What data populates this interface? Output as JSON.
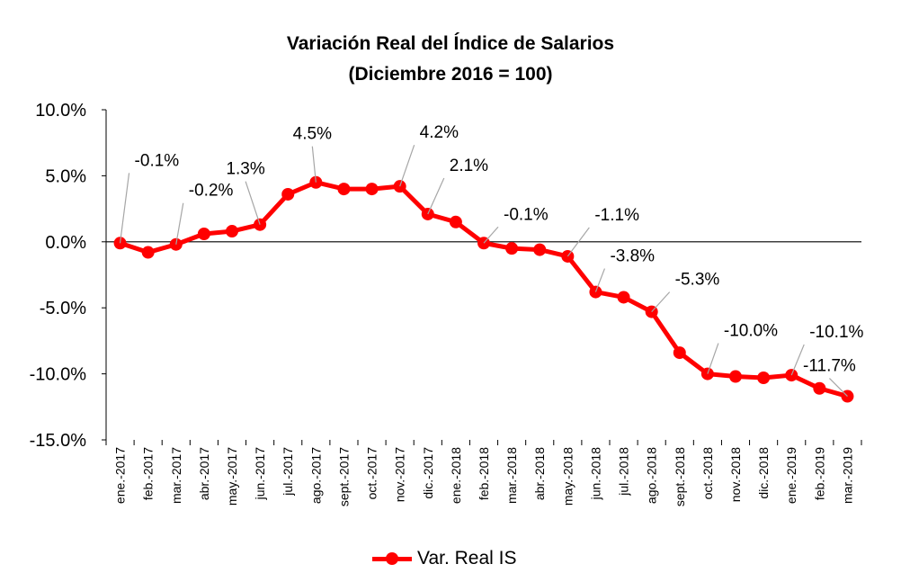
{
  "chart_data": {
    "type": "line",
    "title": "Variación Real del Índice de Salarios",
    "subtitle": "(Diciembre 2016 = 100)",
    "categories": [
      "ene.-2017",
      "feb.-2017",
      "mar.-2017",
      "abr.-2017",
      "may.-2017",
      "jun.-2017",
      "jul.-2017",
      "ago.-2017",
      "sept.-2017",
      "oct.-2017",
      "nov.-2017",
      "dic.-2017",
      "ene.-2018",
      "feb.-2018",
      "mar.-2018",
      "abr.-2018",
      "may.-2018",
      "jun.-2018",
      "jul.-2018",
      "ago.-2018",
      "sept.-2018",
      "oct.-2018",
      "nov.-2018",
      "dic.-2018",
      "ene.-2019",
      "feb.-2019",
      "mar.-2019"
    ],
    "series": [
      {
        "name": "Var. Real IS",
        "color": "#ff0000",
        "values": [
          -0.1,
          -0.8,
          -0.2,
          0.6,
          0.8,
          1.3,
          3.6,
          4.5,
          4.0,
          4.0,
          4.2,
          2.1,
          1.5,
          -0.1,
          -0.5,
          -0.6,
          -1.1,
          -3.8,
          -4.2,
          -5.3,
          -8.4,
          -10.0,
          -10.2,
          -10.3,
          -10.1,
          -11.1,
          -11.7
        ]
      }
    ],
    "data_labels": [
      {
        "category": "ene.-2017",
        "text": "-0.1%"
      },
      {
        "category": "mar.-2017",
        "text": "-0.2%"
      },
      {
        "category": "jun.-2017",
        "text": "1.3%"
      },
      {
        "category": "ago.-2017",
        "text": "4.5%"
      },
      {
        "category": "nov.-2017",
        "text": "4.2%"
      },
      {
        "category": "dic.-2017",
        "text": "2.1%"
      },
      {
        "category": "feb.-2018",
        "text": "-0.1%"
      },
      {
        "category": "may.-2018",
        "text": "-1.1%"
      },
      {
        "category": "jun.-2018",
        "text": "-3.8%"
      },
      {
        "category": "ago.-2018",
        "text": "-5.3%"
      },
      {
        "category": "oct.-2018",
        "text": "-10.0%"
      },
      {
        "category": "ene.-2019",
        "text": "-10.1%"
      },
      {
        "category": "mar.-2019",
        "text": "-11.7%"
      }
    ],
    "y_ticks": [
      {
        "value": 10,
        "label": "10.0%"
      },
      {
        "value": 5,
        "label": "5.0%"
      },
      {
        "value": 0,
        "label": "0.0%"
      },
      {
        "value": -5,
        "label": "-5.0%"
      },
      {
        "value": -10,
        "label": "-10.0%"
      },
      {
        "value": -15,
        "label": "-15.0%"
      }
    ],
    "ylim": [
      -15,
      10
    ],
    "xlabel": "",
    "ylabel": "",
    "grid": false,
    "legend_position": "bottom"
  }
}
